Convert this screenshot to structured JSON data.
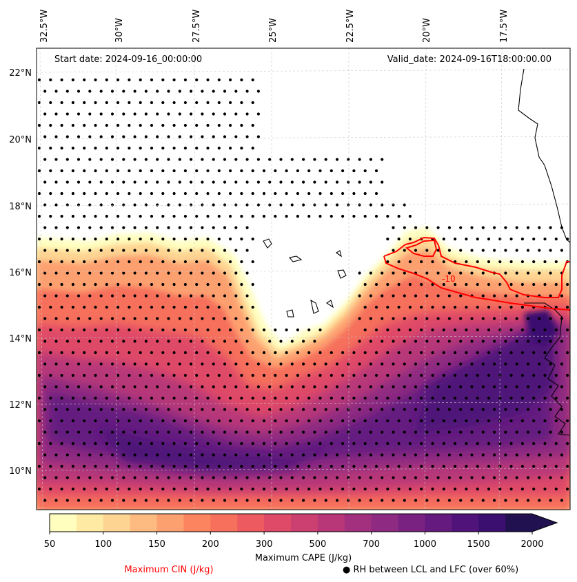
{
  "map": {
    "start_date": "Start date: 2024-09-16_00:00:00",
    "valid_date": "Valid_date: 2024-09-16T18:00:00.00",
    "lon_labels": [
      "32.5°W",
      "30°W",
      "27.5°W",
      "25°W",
      "22.5°W",
      "20°W",
      "17.5°W"
    ],
    "lat_labels": [
      "22°N",
      "20°N",
      "18°N",
      "16°N",
      "14°N",
      "12°N",
      "10°N"
    ],
    "cin_contour_label": "-10"
  },
  "colorbar": {
    "title": "Maximum CAPE (J/kg)",
    "ticks": [
      "50",
      "100",
      "150",
      "200",
      "300",
      "500",
      "700",
      "1000",
      "1500",
      "2000"
    ],
    "colors": [
      "#fffebf",
      "#feeaa3",
      "#fed492",
      "#febb81",
      "#fda06f",
      "#fc8560",
      "#f6705b",
      "#ed5a5f",
      "#df4a68",
      "#cc3f71",
      "#b73779",
      "#a3307e",
      "#8e2a81",
      "#7a2282",
      "#651a80",
      "#501379",
      "#3a0f6f",
      "#221150"
    ]
  },
  "legend": {
    "cin_label": "Maximum CIN (J/kg)",
    "rh_label": "● RH between LCL and LFC (over 60%)",
    "cin_color": "#ff0000"
  }
}
